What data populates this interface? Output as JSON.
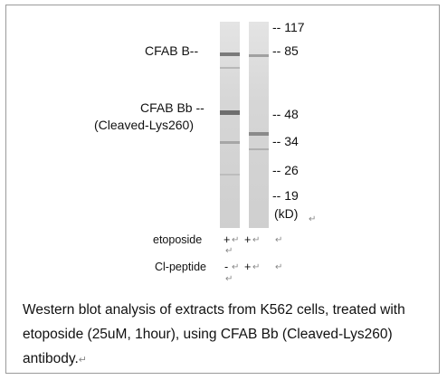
{
  "labels": {
    "cfab_b": "CFAB B--",
    "cfab_bb": "CFAB Bb --",
    "cleaved": "(Cleaved-Lys260)"
  },
  "markers": [
    "-- 117",
    "-- 85",
    "-- 48",
    "-- 34",
    "-- 26",
    "-- 19",
    "(kD)"
  ],
  "treatments": {
    "etoposide_label": "etoposide",
    "etoposide_lane1": "+",
    "etoposide_lane2": "+",
    "peptide_label": "Cl-peptide",
    "peptide_lane1": "-",
    "peptide_lane2": "+"
  },
  "return_mark": "↵",
  "caption": "Western blot analysis of extracts from K562 cells, treated with etoposide (25uM, 1hour), using CFAB Bb (Cleaved-Lys260) antibody."
}
